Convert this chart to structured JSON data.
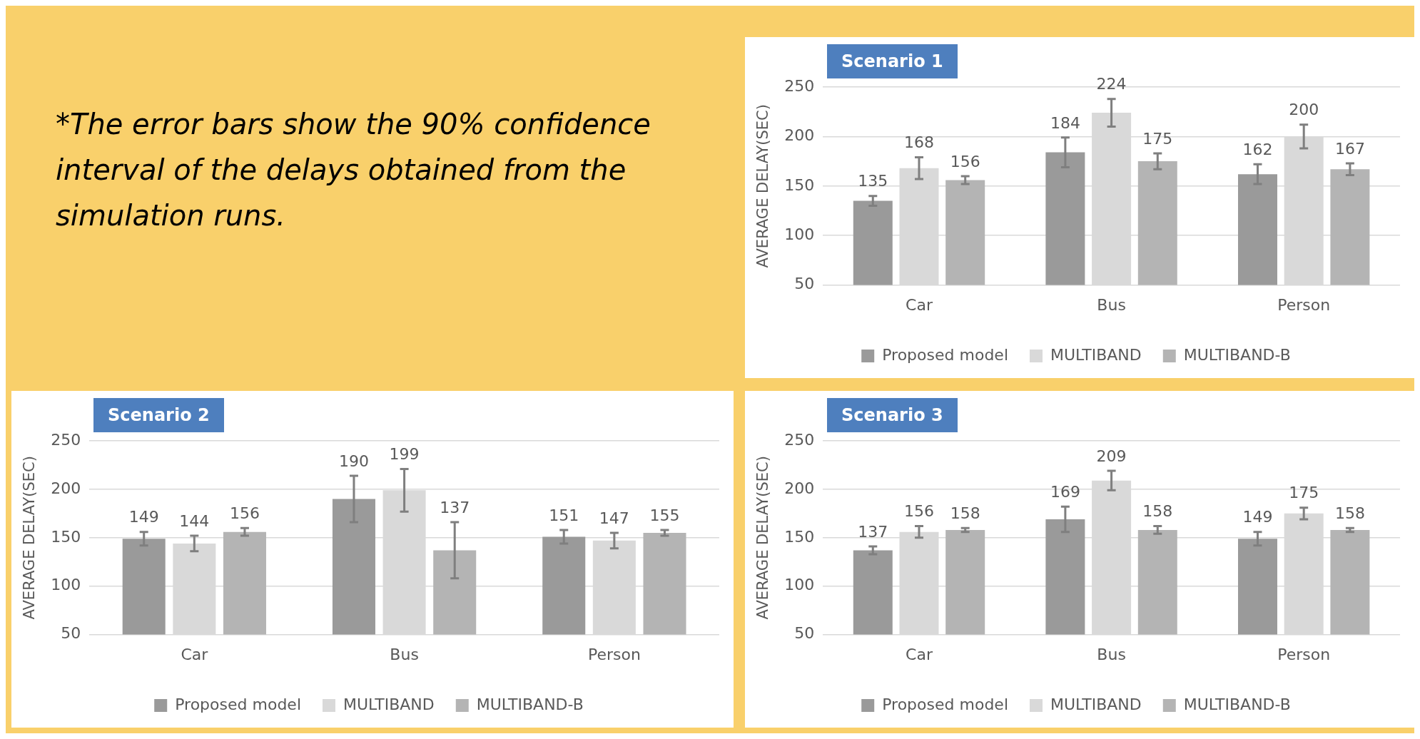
{
  "chart_data": [
    {
      "type": "other",
      "annotations": [
        "*The error bars show the 90% confidence interval of the delays obtained from the simulation runs."
      ]
    },
    {
      "type": "bar",
      "title": "Scenario 1",
      "ylabel": "AVERAGE DELAY(SEC)",
      "categories": [
        "Car",
        "Bus",
        "Person"
      ],
      "ylim": [
        50,
        250
      ],
      "yticks": [
        50,
        100,
        150,
        200,
        250
      ],
      "grid": "y",
      "legend": "bottom",
      "data_labels": true,
      "series": [
        {
          "name": "Proposed model",
          "color": "#9a9a9a",
          "values": [
            135,
            184,
            162
          ],
          "errors": [
            5,
            15,
            10
          ]
        },
        {
          "name": "MULTIBAND",
          "color": "#d9d9d9",
          "values": [
            168,
            224,
            200
          ],
          "errors": [
            11,
            14,
            12
          ]
        },
        {
          "name": "MULTIBAND-B",
          "color": "#b4b4b4",
          "values": [
            156,
            175,
            167
          ],
          "errors": [
            4,
            8,
            6
          ]
        }
      ]
    },
    {
      "type": "bar",
      "title": "Scenario 2",
      "ylabel": "AVERAGE DELAY(SEC)",
      "categories": [
        "Car",
        "Bus",
        "Person"
      ],
      "ylim": [
        50,
        250
      ],
      "yticks": [
        50,
        100,
        150,
        200,
        250
      ],
      "grid": "y",
      "legend": "bottom",
      "data_labels": true,
      "series": [
        {
          "name": "Proposed model",
          "color": "#9a9a9a",
          "values": [
            149,
            190,
            151
          ],
          "errors": [
            7,
            24,
            7
          ]
        },
        {
          "name": "MULTIBAND",
          "color": "#d9d9d9",
          "values": [
            144,
            199,
            147
          ],
          "errors": [
            8,
            22,
            8
          ]
        },
        {
          "name": "MULTIBAND-B",
          "color": "#b4b4b4",
          "values": [
            156,
            137,
            155
          ],
          "errors": [
            4,
            29,
            3
          ]
        }
      ]
    },
    {
      "type": "bar",
      "title": "Scenario 3",
      "ylabel": "AVERAGE DELAY(SEC)",
      "categories": [
        "Car",
        "Bus",
        "Person"
      ],
      "ylim": [
        50,
        250
      ],
      "yticks": [
        50,
        100,
        150,
        200,
        250
      ],
      "grid": "y",
      "legend": "bottom",
      "data_labels": true,
      "series": [
        {
          "name": "Proposed model",
          "color": "#9a9a9a",
          "values": [
            137,
            169,
            149
          ],
          "errors": [
            4,
            13,
            7
          ]
        },
        {
          "name": "MULTIBAND",
          "color": "#d9d9d9",
          "values": [
            156,
            209,
            175
          ],
          "errors": [
            6,
            10,
            6
          ]
        },
        {
          "name": "MULTIBAND-B",
          "color": "#b4b4b4",
          "values": [
            158,
            158,
            158
          ],
          "errors": [
            2,
            4,
            2
          ]
        }
      ]
    }
  ]
}
